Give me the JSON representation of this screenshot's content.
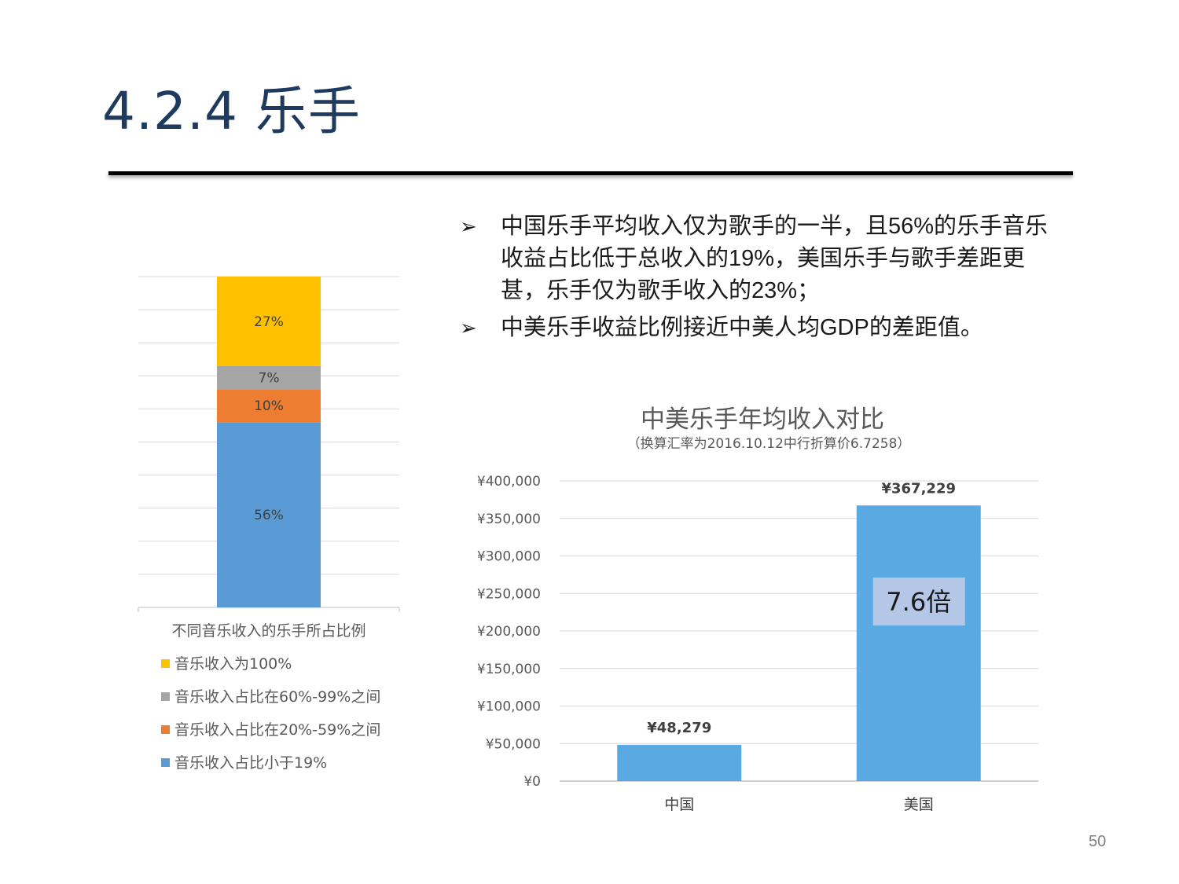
{
  "slide": {
    "title": "4.2.4  乐手",
    "page_number": "50",
    "bullet_marker": "➢",
    "bullets": [
      "中国乐手平均收入仅为歌手的一半，且56%的乐手音乐收益占比低于总收入的19%，美国乐手与歌手差距更甚，乐手仅为歌手收入的23%；",
      "中美乐手收益比例接近中美人均GDP的差距值。"
    ]
  },
  "chart_data": [
    {
      "type": "bar",
      "stacked": true,
      "title": "",
      "xlabel": "",
      "ylabel": "",
      "categories": [
        "不同音乐收入的乐手所占比例"
      ],
      "series": [
        {
          "name": "音乐收入占比小于19%",
          "values": [
            56
          ],
          "label": "56%",
          "color": "#5b9bd5"
        },
        {
          "name": "音乐收入占比在20%-59%之间",
          "values": [
            10
          ],
          "label": "10%",
          "color": "#ed7d31"
        },
        {
          "name": "音乐收入占比在60%-99%之间",
          "values": [
            7
          ],
          "label": "7%",
          "color": "#a5a5a5"
        },
        {
          "name": "音乐收入为100%",
          "values": [
            27
          ],
          "label": "27%",
          "color": "#ffc000"
        }
      ],
      "legend_order": [
        "音乐收入为100%",
        "音乐收入占比在60%-99%之间",
        "音乐收入占比在20%-59%之间",
        "音乐收入占比小于19%"
      ],
      "ylim": [
        0,
        100
      ],
      "grid": true,
      "legend_position": "bottom"
    },
    {
      "type": "bar",
      "title": "中美乐手年均收入对比",
      "subtitle": "（换算汇率为2016.10.12中行折算价6.7258）",
      "xlabel": "",
      "ylabel": "",
      "categories": [
        "中国",
        "美国"
      ],
      "values": [
        48279,
        367229
      ],
      "value_labels": [
        "¥48,279",
        "¥367,229"
      ],
      "yticks": [
        "¥0",
        "¥50,000",
        "¥100,000",
        "¥150,000",
        "¥200,000",
        "¥250,000",
        "¥300,000",
        "¥350,000",
        "¥400,000"
      ],
      "ylim": [
        0,
        400000
      ],
      "grid": true,
      "bar_color": "#5aa9e2",
      "annotation": "7.6倍"
    }
  ]
}
